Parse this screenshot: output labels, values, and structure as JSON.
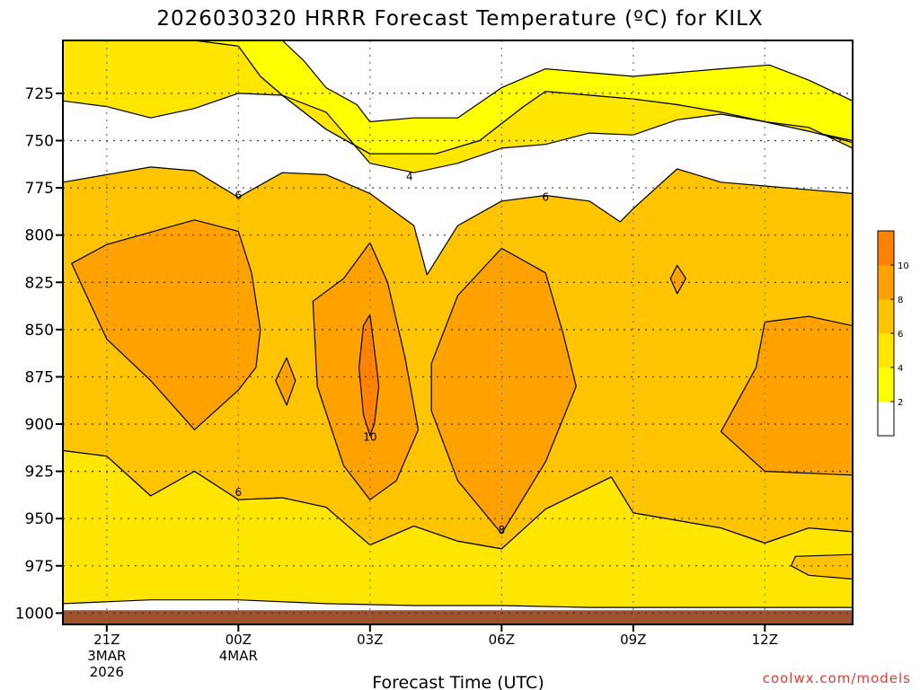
{
  "chart_data": {
    "type": "contour",
    "title": "2026030320 HRRR Forecast Temperature (ºC) for KILX",
    "xlabel": "Forecast Time (UTC)",
    "ylabel": "",
    "y_axis": {
      "type": "pressure",
      "reversed": true,
      "ticks": [
        "725",
        "750",
        "775",
        "800",
        "825",
        "850",
        "875",
        "900",
        "925",
        "950",
        "975",
        "1000"
      ],
      "range": [
        697,
        1006
      ]
    },
    "x_axis": {
      "range_hours": [
        -1,
        17
      ],
      "ticks": [
        {
          "hour": 0,
          "lines": [
            "21Z",
            "3MAR",
            "2026"
          ]
        },
        {
          "hour": 3,
          "lines": [
            "00Z",
            "4MAR"
          ]
        },
        {
          "hour": 6,
          "lines": [
            "03Z"
          ]
        },
        {
          "hour": 9,
          "lines": [
            "06Z"
          ]
        },
        {
          "hour": 12,
          "lines": [
            "09Z"
          ]
        },
        {
          "hour": 15,
          "lines": [
            "12Z"
          ]
        }
      ]
    },
    "contour_levels": [
      2,
      4,
      6,
      8,
      10
    ],
    "contour_labels": [
      {
        "text": "4",
        "hour": 6.9,
        "pressure": 769
      },
      {
        "text": "6",
        "hour": 3.0,
        "pressure": 779
      },
      {
        "text": "6",
        "hour": 10.0,
        "pressure": 780
      },
      {
        "text": "6",
        "hour": 3.0,
        "pressure": 936
      },
      {
        "text": "10",
        "hour": 6.0,
        "pressure": 907
      },
      {
        "text": "8",
        "hour": 9.0,
        "pressure": 956
      }
    ],
    "colorbar": {
      "ticks": [
        "2",
        "4",
        "6",
        "8",
        "10"
      ],
      "colors": [
        "#ffffff",
        "#ffff00",
        "#ffe600",
        "#ffc400",
        "#ffa200",
        "#ff8200"
      ]
    },
    "regions": [
      {
        "name": "white-4-unfilled",
        "band": "<2",
        "color": "#ffffff",
        "points": [
          [
            -1,
            697
          ],
          [
            17,
            697
          ],
          [
            17,
            750
          ],
          [
            16,
            745
          ],
          [
            15,
            740
          ],
          [
            14,
            735
          ],
          [
            13,
            731
          ],
          [
            12,
            728
          ],
          [
            11,
            726
          ],
          [
            10,
            724
          ],
          [
            9.5,
            732
          ],
          [
            8.5,
            750
          ],
          [
            7.5,
            757
          ],
          [
            6.3,
            757
          ],
          [
            6,
            757
          ],
          [
            5,
            744
          ],
          [
            4,
            726
          ],
          [
            3.5,
            716
          ],
          [
            3,
            700
          ],
          [
            2,
            697
          ],
          [
            -1,
            697
          ]
        ]
      },
      {
        "name": "band-2-4",
        "band": "2-4",
        "color": "#ffff00",
        "points": [
          [
            -1,
            697
          ],
          [
            2,
            697
          ],
          [
            3,
            700
          ],
          [
            3.5,
            716
          ],
          [
            4,
            726
          ],
          [
            5,
            744
          ],
          [
            6,
            757
          ],
          [
            7.5,
            757
          ],
          [
            8.5,
            750
          ],
          [
            9.5,
            732
          ],
          [
            10,
            724
          ],
          [
            11,
            726
          ],
          [
            12,
            728
          ],
          [
            13,
            731
          ],
          [
            14,
            735
          ],
          [
            15,
            740
          ],
          [
            16,
            745
          ],
          [
            17,
            750
          ],
          [
            17,
            729
          ],
          [
            16,
            718
          ],
          [
            15.1,
            710
          ],
          [
            14,
            712
          ],
          [
            12,
            716
          ],
          [
            10,
            712
          ],
          [
            9,
            722
          ],
          [
            8,
            738
          ],
          [
            7,
            738
          ],
          [
            6,
            740
          ],
          [
            5.7,
            731
          ],
          [
            5,
            722
          ],
          [
            4.5,
            708
          ],
          [
            4,
            697
          ],
          [
            0.8,
            697
          ],
          [
            0,
            700
          ],
          [
            -1,
            697
          ]
        ]
      },
      {
        "name": "band-4-6",
        "band": "4-6",
        "color": "#ffe600",
        "points": [
          [
            -1,
            729
          ],
          [
            0,
            732
          ],
          [
            1,
            738
          ],
          [
            2,
            733
          ],
          [
            3,
            725
          ],
          [
            4,
            726
          ],
          [
            5,
            735
          ],
          [
            6,
            762
          ],
          [
            7,
            767
          ],
          [
            8,
            762
          ],
          [
            9,
            754
          ],
          [
            10,
            752
          ],
          [
            11,
            746
          ],
          [
            12,
            747
          ],
          [
            13,
            739
          ],
          [
            14,
            736
          ],
          [
            15,
            740
          ],
          [
            16,
            743
          ],
          [
            17,
            754
          ],
          [
            17,
            751
          ],
          [
            16,
            745
          ],
          [
            15,
            740
          ],
          [
            14,
            735
          ],
          [
            13,
            731
          ],
          [
            12,
            728
          ],
          [
            11,
            726
          ],
          [
            10,
            724
          ],
          [
            9.5,
            732
          ],
          [
            8.5,
            750
          ],
          [
            7.5,
            757
          ],
          [
            6,
            757
          ],
          [
            5,
            744
          ],
          [
            4,
            726
          ],
          [
            3.5,
            716
          ],
          [
            3,
            700
          ],
          [
            2,
            697
          ],
          [
            -1,
            697
          ]
        ]
      },
      {
        "name": "band-6-8",
        "band": "6-8",
        "color": "#ffc400",
        "points": [
          [
            -1,
            772
          ],
          [
            0,
            768
          ],
          [
            1,
            764
          ],
          [
            2,
            766
          ],
          [
            3,
            780
          ],
          [
            4,
            767
          ],
          [
            5,
            768
          ],
          [
            6,
            778
          ],
          [
            7,
            795
          ],
          [
            7.3,
            821
          ],
          [
            8,
            795
          ],
          [
            9,
            782
          ],
          [
            10,
            779
          ],
          [
            11,
            782
          ],
          [
            11.7,
            793
          ],
          [
            12,
            786
          ],
          [
            13,
            765
          ],
          [
            14,
            772
          ],
          [
            15,
            774
          ],
          [
            16,
            776
          ],
          [
            17,
            778
          ],
          [
            17,
            957
          ],
          [
            16,
            955
          ],
          [
            15,
            963
          ],
          [
            14,
            955
          ],
          [
            12,
            947
          ],
          [
            11.5,
            928
          ],
          [
            10,
            945
          ],
          [
            9,
            966
          ],
          [
            8,
            962
          ],
          [
            7,
            954
          ],
          [
            6,
            964
          ],
          [
            5,
            944
          ],
          [
            4,
            939
          ],
          [
            3,
            940
          ],
          [
            2,
            925
          ],
          [
            1,
            938
          ],
          [
            0,
            917
          ],
          [
            -1,
            914
          ]
        ]
      },
      {
        "name": "band-8-10-left",
        "band": "8-10",
        "color": "#ffa200",
        "points": [
          [
            -0.8,
            815
          ],
          [
            0,
            805
          ],
          [
            2,
            792
          ],
          [
            3,
            798
          ],
          [
            3.3,
            820
          ],
          [
            3.5,
            850
          ],
          [
            3.4,
            870
          ],
          [
            3,
            882
          ],
          [
            2,
            903
          ],
          [
            1,
            877
          ],
          [
            0,
            855
          ],
          [
            -0.8,
            815
          ]
        ]
      },
      {
        "name": "band-8-10-small-diamond",
        "band": "8-10",
        "color": "#ffa200",
        "points": [
          [
            4.1,
            865
          ],
          [
            4.3,
            877
          ],
          [
            4.1,
            890
          ],
          [
            3.85,
            877
          ],
          [
            4.1,
            865
          ]
        ]
      },
      {
        "name": "band-8-10-center",
        "band": "8-10",
        "color": "#ffa200",
        "points": [
          [
            5.4,
            823
          ],
          [
            6,
            804
          ],
          [
            6.4,
            825
          ],
          [
            6.8,
            865
          ],
          [
            7.1,
            903
          ],
          [
            6.6,
            930
          ],
          [
            6,
            940
          ],
          [
            5.4,
            922
          ],
          [
            4.8,
            880
          ],
          [
            4.7,
            835
          ],
          [
            5.4,
            823
          ]
        ]
      },
      {
        "name": "band-8-10-right",
        "band": "8-10",
        "color": "#ffa200",
        "points": [
          [
            7.4,
            868
          ],
          [
            8,
            832
          ],
          [
            9,
            807
          ],
          [
            10,
            820
          ],
          [
            10.4,
            852
          ],
          [
            10.7,
            880
          ],
          [
            10,
            920
          ],
          [
            9,
            958
          ],
          [
            8,
            930
          ],
          [
            7.4,
            893
          ],
          [
            7.4,
            868
          ]
        ]
      },
      {
        "name": "band-8-10-tiny-diamond",
        "band": "8-10",
        "color": "#ffa200",
        "points": [
          [
            13,
            816
          ],
          [
            13.2,
            823
          ],
          [
            13,
            831
          ],
          [
            12.85,
            823
          ],
          [
            13,
            816
          ]
        ]
      },
      {
        "name": "band-8-10-far-right",
        "band": "8-10",
        "color": "#ffa200",
        "points": [
          [
            17,
            848
          ],
          [
            16,
            843
          ],
          [
            15,
            846
          ],
          [
            14.8,
            870
          ],
          [
            14,
            904
          ],
          [
            15,
            925
          ],
          [
            16,
            926
          ],
          [
            17,
            927
          ],
          [
            17,
            848
          ]
        ]
      },
      {
        "name": "band-10-12",
        "band": "10-12",
        "color": "#ff8200",
        "points": [
          [
            5.85,
            848
          ],
          [
            6,
            842
          ],
          [
            6.15,
            870
          ],
          [
            6.2,
            880
          ],
          [
            6.1,
            900
          ],
          [
            6,
            906
          ],
          [
            5.85,
            895
          ],
          [
            5.75,
            870
          ],
          [
            5.85,
            848
          ]
        ]
      },
      {
        "name": "band-4-6-bottom",
        "band": "4-6",
        "color": "#ffe600",
        "points": [
          [
            -1,
            914
          ],
          [
            0,
            917
          ],
          [
            1,
            938
          ],
          [
            2,
            925
          ],
          [
            3,
            940
          ],
          [
            4,
            939
          ],
          [
            5,
            944
          ],
          [
            6,
            964
          ],
          [
            7,
            954
          ],
          [
            8,
            962
          ],
          [
            9,
            966
          ],
          [
            10,
            945
          ],
          [
            11.5,
            928
          ],
          [
            12,
            947
          ],
          [
            14,
            955
          ],
          [
            15,
            963
          ],
          [
            16,
            955
          ],
          [
            17,
            957
          ],
          [
            17,
            997
          ],
          [
            15,
            997
          ],
          [
            13,
            997
          ],
          [
            11,
            997
          ],
          [
            9,
            996
          ],
          [
            7,
            996
          ],
          [
            5,
            995
          ],
          [
            3,
            993
          ],
          [
            1,
            993
          ],
          [
            -1,
            995
          ]
        ]
      },
      {
        "name": "band-6-8-bottom-right",
        "band": "6-8",
        "color": "#ffc400",
        "points": [
          [
            15.7,
            970
          ],
          [
            17,
            969
          ],
          [
            17,
            982
          ],
          [
            16,
            980
          ],
          [
            15.6,
            975
          ],
          [
            15.7,
            970
          ]
        ]
      }
    ]
  },
  "credit": "coolwx.com/models"
}
